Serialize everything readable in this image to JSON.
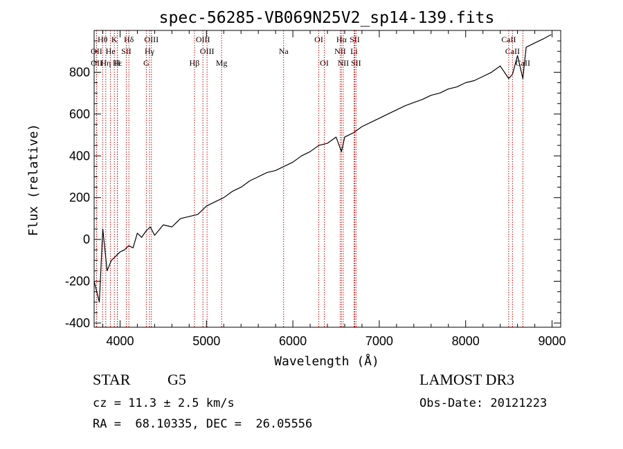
{
  "chart_data": {
    "type": "line",
    "title": "spec-56285-VB069N25V2_sp14-139.fits",
    "xlabel": "Wavelength (Å)",
    "ylabel": "Flux (relative)",
    "xlim": [
      3700,
      9100
    ],
    "ylim": [
      -420,
      1000
    ],
    "x_ticks": [
      4000,
      5000,
      6000,
      7000,
      8000,
      9000
    ],
    "y_ticks": [
      -400,
      -200,
      0,
      200,
      400,
      600,
      800
    ],
    "colors": {
      "spectrum": "#000000",
      "lines": "#cc0000",
      "axes": "#000000"
    },
    "spectrum": {
      "x": [
        3700,
        3760,
        3800,
        3850,
        3900,
        3950,
        4000,
        4050,
        4100,
        4150,
        4200,
        4250,
        4300,
        4350,
        4400,
        4500,
        4600,
        4700,
        4800,
        4900,
        5000,
        5100,
        5200,
        5300,
        5400,
        5500,
        5600,
        5700,
        5800,
        5900,
        6000,
        6100,
        6200,
        6300,
        6400,
        6500,
        6563,
        6600,
        6700,
        6800,
        6900,
        7000,
        7100,
        7200,
        7300,
        7400,
        7500,
        7600,
        7700,
        7800,
        7900,
        8000,
        8100,
        8200,
        8300,
        8400,
        8498,
        8542,
        8600,
        8662,
        8700,
        8800,
        8900,
        8990
      ],
      "y": [
        -200,
        -300,
        50,
        -150,
        -100,
        -80,
        -60,
        -50,
        -30,
        -40,
        30,
        10,
        40,
        60,
        20,
        70,
        60,
        100,
        110,
        120,
        160,
        180,
        200,
        230,
        250,
        280,
        300,
        320,
        330,
        350,
        370,
        400,
        420,
        450,
        460,
        490,
        420,
        490,
        510,
        540,
        560,
        580,
        600,
        620,
        640,
        655,
        670,
        690,
        700,
        720,
        730,
        750,
        760,
        780,
        800,
        830,
        770,
        790,
        880,
        770,
        920,
        940,
        960,
        980
      ]
    },
    "lines_top": [
      {
        "label": "Hθ",
        "wave": 3798
      },
      {
        "label": "K",
        "wave": 3934
      },
      {
        "label": "Hδ",
        "wave": 4102
      },
      {
        "label": "OIII",
        "wave": 4363
      },
      {
        "label": "OIII",
        "wave": 4959
      },
      {
        "label": "OI",
        "wave": 6300
      },
      {
        "label": "Hα",
        "wave": 6563
      },
      {
        "label": "SII",
        "wave": 6716
      },
      {
        "label": "CaII",
        "wave": 8498
      }
    ],
    "lines_mid": [
      {
        "label": "OII",
        "wave": 3727
      },
      {
        "label": "He",
        "wave": 3889
      },
      {
        "label": "SII",
        "wave": 4072
      },
      {
        "label": "Hγ",
        "wave": 4341
      },
      {
        "label": "OIII",
        "wave": 5007
      },
      {
        "label": "Na",
        "wave": 5893
      },
      {
        "label": "NII",
        "wave": 6548
      },
      {
        "label": "Li",
        "wave": 6708
      },
      {
        "label": "CaII",
        "wave": 8542
      }
    ],
    "lines_bot": [
      {
        "label": "OII",
        "wave": 3729
      },
      {
        "label": "Hε",
        "wave": 3970
      },
      {
        "label": "Hη",
        "wave": 3835
      },
      {
        "label": "H",
        "wave": 3968
      },
      {
        "label": "G",
        "wave": 4304
      },
      {
        "label": "Hβ",
        "wave": 4861
      },
      {
        "label": "Mg",
        "wave": 5175
      },
      {
        "label": "OI",
        "wave": 6364
      },
      {
        "label": "NII",
        "wave": 6583
      },
      {
        "label": "SII",
        "wave": 6731
      },
      {
        "label": "CaII",
        "wave": 8662
      }
    ]
  },
  "footer": {
    "object_class": "STAR",
    "subclass": "G5",
    "survey": "LAMOST DR3",
    "cz": "cz = 11.3 ± 2.5 km/s",
    "obs_date": "Obs-Date: 20121223",
    "radec": "RA =  68.10335, DEC =  26.05556"
  }
}
